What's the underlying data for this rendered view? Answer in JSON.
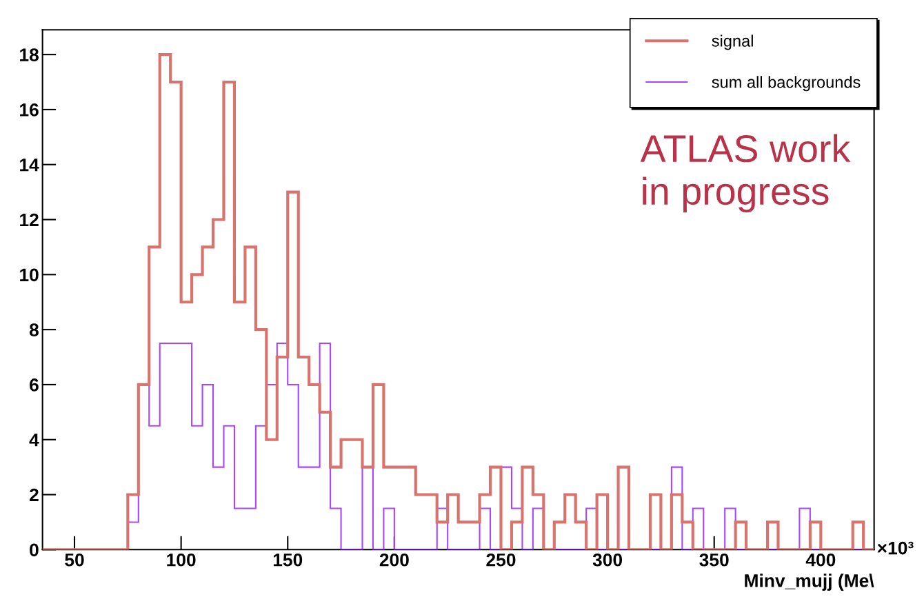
{
  "chart_data": {
    "type": "histogram",
    "xlabel": "Minv_mujj (Me\\",
    "bins": [
      35,
      40,
      45,
      50,
      55,
      60,
      65,
      70,
      75,
      80,
      85,
      90,
      95,
      100,
      105,
      110,
      115,
      120,
      125,
      130,
      135,
      140,
      145,
      150,
      155,
      160,
      165,
      170,
      175,
      180,
      185,
      190,
      195,
      200,
      205,
      210,
      215,
      220,
      225,
      230,
      235,
      240,
      245,
      250,
      255,
      260,
      265,
      270,
      275,
      280,
      285,
      290,
      295,
      300,
      305,
      310,
      315,
      320,
      325,
      330,
      335,
      340,
      345,
      350,
      355,
      360,
      365,
      370,
      375,
      380,
      385,
      390,
      395,
      400,
      405,
      410,
      415,
      420,
      425
    ],
    "series": [
      {
        "name": "signal",
        "color": "#d9736e",
        "values": [
          0,
          0,
          0,
          0,
          0,
          0,
          0,
          0,
          2,
          6,
          11,
          18,
          17,
          9,
          10,
          11,
          12,
          17,
          9,
          11,
          8,
          4,
          7,
          13,
          7,
          6,
          5,
          3,
          4,
          4,
          3,
          6,
          3,
          3,
          3,
          2,
          2,
          1,
          2,
          1,
          1,
          2,
          3,
          0,
          1,
          3,
          2,
          0,
          1,
          2,
          1,
          0,
          2,
          0,
          3,
          0,
          0,
          2,
          0,
          2,
          1,
          0,
          0,
          0,
          0,
          1,
          0,
          0,
          1,
          0,
          0,
          0,
          1,
          0,
          0,
          0,
          1,
          0
        ]
      },
      {
        "name": "sum all backgrounds",
        "color": "#aa44ff",
        "values": [
          0,
          0,
          0,
          0,
          0,
          0,
          0,
          0,
          1,
          6,
          4.5,
          7.5,
          7.5,
          7.5,
          4.5,
          6,
          3,
          4.5,
          1.5,
          1.5,
          4.5,
          6,
          7.5,
          6,
          3,
          3,
          7.5,
          1.5,
          0,
          0,
          3,
          0,
          1.5,
          0,
          0,
          0,
          0,
          1.5,
          0,
          0,
          0,
          1.5,
          0,
          3,
          1.5,
          0,
          1.5,
          0,
          0,
          0,
          0,
          1.5,
          0,
          0,
          0,
          0,
          0,
          0,
          0,
          3,
          0,
          1.5,
          0,
          0,
          1.5,
          0,
          0,
          0,
          0,
          0,
          0,
          1.5,
          0,
          0,
          0,
          0,
          0,
          0
        ]
      }
    ],
    "xlim": [
      35,
      425
    ],
    "xticks": [
      50,
      100,
      150,
      200,
      250,
      300,
      350,
      400
    ],
    "ylim": [
      0,
      18.9
    ],
    "yticks": [
      0,
      2,
      4,
      6,
      8,
      10,
      12,
      14,
      16,
      18
    ],
    "grid": false,
    "legend": "top right",
    "annotations": [
      "ATLAS work\nin progress",
      "×10³"
    ]
  }
}
